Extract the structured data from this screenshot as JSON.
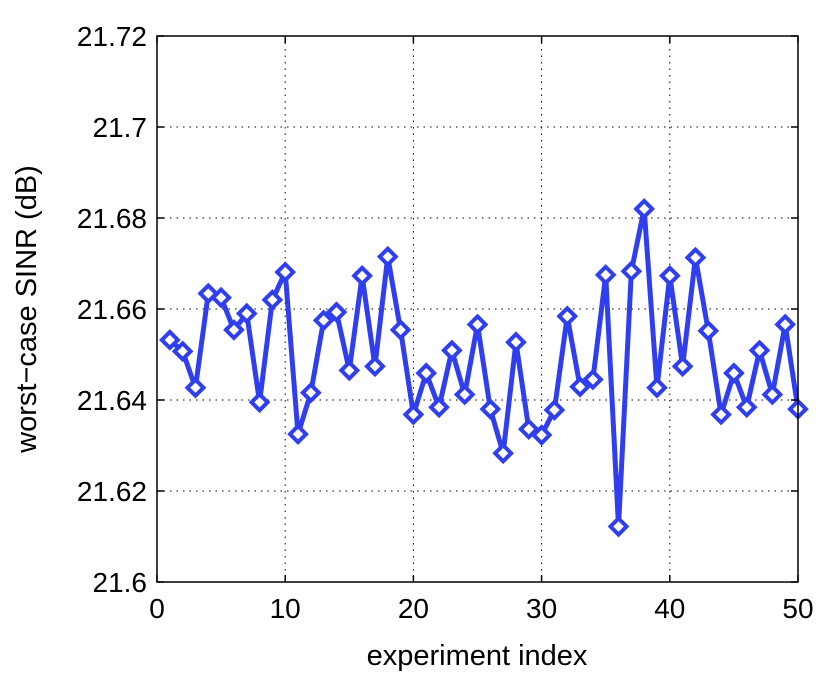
{
  "chart_data": {
    "type": "line",
    "title": "",
    "xlabel": "experiment index",
    "ylabel": "worst−case SINR (dB)",
    "xlim": [
      0,
      50
    ],
    "ylim": [
      21.6,
      21.72
    ],
    "xticks": [
      0,
      10,
      20,
      30,
      40,
      50
    ],
    "xtick_labels": [
      "0",
      "10",
      "20",
      "30",
      "40",
      "50"
    ],
    "yticks": [
      21.6,
      21.62,
      21.64,
      21.66,
      21.68,
      21.7,
      21.72
    ],
    "ytick_labels": [
      "21.6",
      "21.62",
      "21.64",
      "21.66",
      "21.68",
      "21.7",
      "21.72"
    ],
    "grid": true,
    "legend": "none",
    "series": [
      {
        "color": "#2f3ff0",
        "marker": "diamond",
        "x": [
          1,
          2,
          3,
          4,
          5,
          6,
          7,
          8,
          9,
          10,
          11,
          12,
          13,
          14,
          15,
          16,
          17,
          18,
          19,
          20,
          21,
          22,
          23,
          24,
          25,
          26,
          27,
          28,
          29,
          30,
          31,
          32,
          33,
          34,
          35,
          36,
          37,
          38,
          39,
          40,
          41,
          42,
          43,
          44,
          45,
          46,
          47,
          48,
          49,
          50
        ],
        "values": [
          21.6532,
          21.6507,
          21.6427,
          21.6634,
          21.6625,
          21.6554,
          21.659,
          21.6395,
          21.662,
          21.6681,
          21.6325,
          21.6416,
          21.6575,
          21.6593,
          21.6465,
          21.6673,
          21.6474,
          21.6715,
          21.6554,
          21.6368,
          21.6459,
          21.6384,
          21.6509,
          21.6412,
          21.6566,
          21.638,
          21.6283,
          21.6527,
          21.6336,
          21.6323,
          21.6378,
          21.6584,
          21.6429,
          21.6445,
          21.6675,
          21.6122,
          21.6683,
          21.682,
          21.6427,
          21.6673,
          21.6474,
          21.6713,
          21.6552,
          21.6368,
          21.6459,
          21.6384,
          21.6509,
          21.6412,
          21.6566,
          21.638
        ]
      }
    ]
  }
}
